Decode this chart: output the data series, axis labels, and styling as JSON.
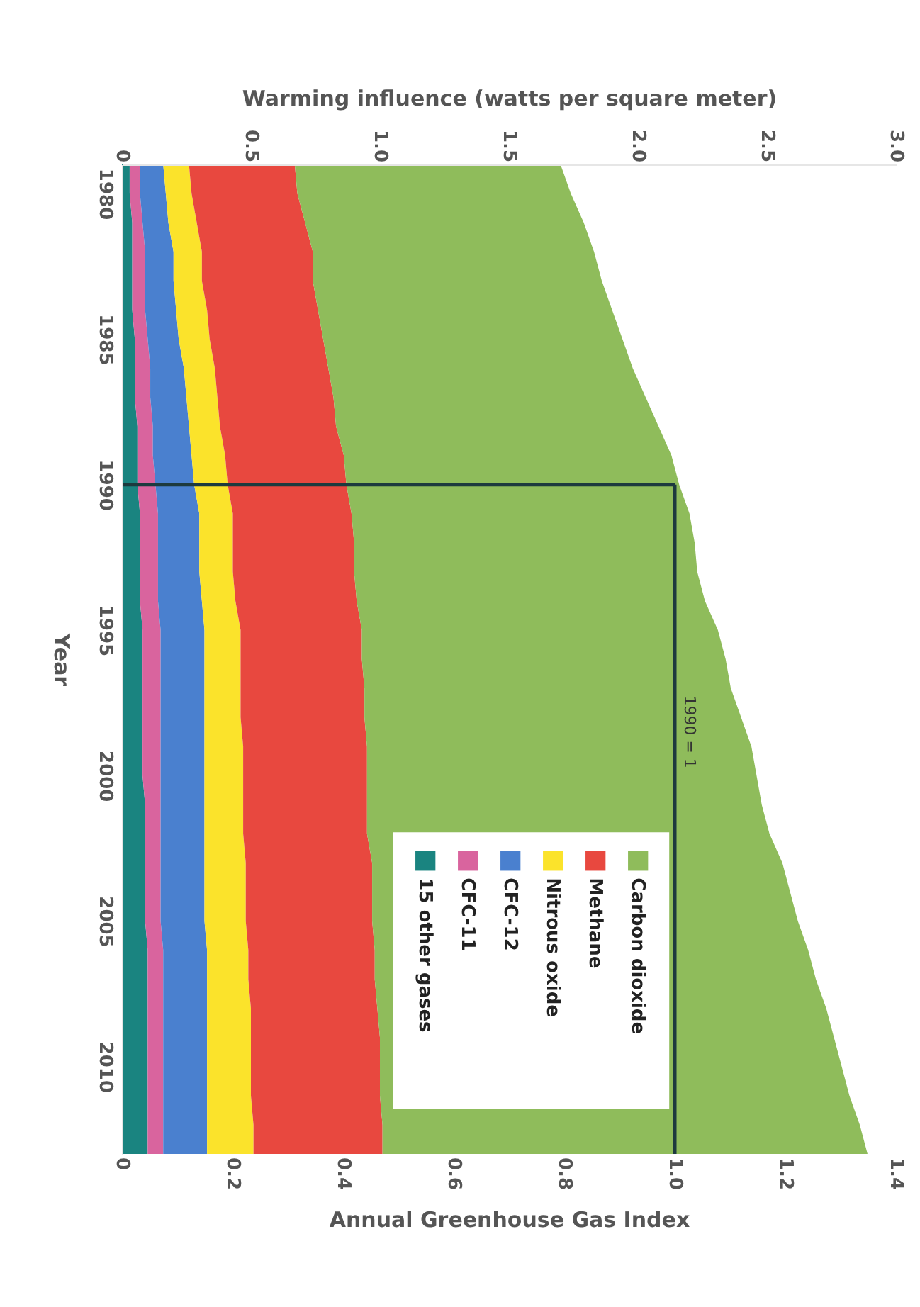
{
  "chart_data": {
    "type": "area",
    "orientation": "horizontal",
    "stacked": true,
    "xlabel": "Warming influence (watts per square meter)",
    "ylabel": "Year",
    "x2label": "Annual Greenhouse Gas Index",
    "x": [
      1979,
      1980,
      1981,
      1982,
      1983,
      1984,
      1985,
      1986,
      1987,
      1988,
      1989,
      1990,
      1991,
      1992,
      1993,
      1994,
      1995,
      1996,
      1997,
      1998,
      1999,
      2000,
      2001,
      2002,
      2003,
      2004,
      2005,
      2006,
      2007,
      2008,
      2009,
      2010,
      2011,
      2012,
      2013
    ],
    "series": [
      {
        "name": "15 other gases",
        "color": "#1a8480",
        "values": [
          0.03,
          0.03,
          0.04,
          0.04,
          0.04,
          0.04,
          0.05,
          0.05,
          0.05,
          0.06,
          0.06,
          0.06,
          0.07,
          0.07,
          0.07,
          0.07,
          0.08,
          0.08,
          0.08,
          0.08,
          0.08,
          0.08,
          0.09,
          0.09,
          0.09,
          0.09,
          0.09,
          0.1,
          0.1,
          0.1,
          0.1,
          0.1,
          0.1,
          0.1,
          0.1
        ]
      },
      {
        "name": "CFC-11",
        "color": "#d9649e",
        "values": [
          0.04,
          0.04,
          0.04,
          0.05,
          0.05,
          0.05,
          0.05,
          0.06,
          0.06,
          0.06,
          0.06,
          0.07,
          0.07,
          0.07,
          0.07,
          0.07,
          0.07,
          0.07,
          0.07,
          0.07,
          0.07,
          0.07,
          0.06,
          0.06,
          0.06,
          0.06,
          0.06,
          0.06,
          0.06,
          0.06,
          0.06,
          0.06,
          0.06,
          0.06,
          0.06
        ]
      },
      {
        "name": "CFC-12",
        "color": "#4a80cf",
        "values": [
          0.09,
          0.1,
          0.1,
          0.11,
          0.11,
          0.12,
          0.12,
          0.13,
          0.14,
          0.14,
          0.15,
          0.15,
          0.16,
          0.16,
          0.16,
          0.17,
          0.17,
          0.17,
          0.17,
          0.17,
          0.17,
          0.17,
          0.17,
          0.17,
          0.17,
          0.17,
          0.17,
          0.17,
          0.17,
          0.17,
          0.17,
          0.17,
          0.17,
          0.17,
          0.17
        ]
      },
      {
        "name": "Nitrous oxide",
        "color": "#fbe32b",
        "values": [
          0.1,
          0.1,
          0.11,
          0.11,
          0.11,
          0.12,
          0.12,
          0.12,
          0.12,
          0.12,
          0.13,
          0.13,
          0.13,
          0.13,
          0.13,
          0.13,
          0.14,
          0.14,
          0.14,
          0.14,
          0.15,
          0.15,
          0.15,
          0.15,
          0.16,
          0.16,
          0.16,
          0.16,
          0.16,
          0.17,
          0.17,
          0.17,
          0.17,
          0.18,
          0.18
        ]
      },
      {
        "name": "Methane",
        "color": "#e8483f",
        "values": [
          0.41,
          0.41,
          0.42,
          0.43,
          0.43,
          0.43,
          0.44,
          0.44,
          0.45,
          0.45,
          0.46,
          0.46,
          0.46,
          0.47,
          0.47,
          0.47,
          0.47,
          0.47,
          0.48,
          0.48,
          0.48,
          0.48,
          0.48,
          0.48,
          0.49,
          0.49,
          0.49,
          0.49,
          0.49,
          0.49,
          0.5,
          0.5,
          0.5,
          0.5,
          0.5
        ]
      },
      {
        "name": "Carbon dioxide",
        "color": "#8fbc5b",
        "values": [
          1.03,
          1.06,
          1.08,
          1.09,
          1.12,
          1.14,
          1.16,
          1.18,
          1.21,
          1.25,
          1.27,
          1.29,
          1.31,
          1.32,
          1.33,
          1.35,
          1.38,
          1.41,
          1.42,
          1.46,
          1.49,
          1.51,
          1.53,
          1.56,
          1.59,
          1.62,
          1.65,
          1.68,
          1.71,
          1.74,
          1.76,
          1.79,
          1.82,
          1.85,
          1.88
        ]
      }
    ],
    "xlim": [
      0,
      3.0
    ],
    "xticks": [
      0,
      {
        "value": 0.5,
        "label": "0.5"
      },
      {
        "value": 1.0,
        "label": "1.0"
      },
      {
        "value": 1.5,
        "label": "1.5"
      },
      {
        "value": 2.0,
        "label": "2.0"
      },
      {
        "value": 2.5,
        "label": "2.5"
      },
      {
        "value": 3.0,
        "label": "3.0"
      }
    ],
    "x2lim": [
      0,
      1.4
    ],
    "x2ticks": [
      0,
      0.2,
      0.4,
      0.6,
      0.8,
      {
        "value": 1.0,
        "label": "1.0"
      },
      1.2,
      1.4
    ],
    "ylim": [
      2013,
      1979
    ],
    "yticks": [
      1980,
      1985,
      1990,
      1995,
      2000,
      2005,
      2010
    ],
    "ref_lines": [
      {
        "axis": "y",
        "value": 1990,
        "color": "#1d3a3e"
      },
      {
        "axis": "x2",
        "value": 1.0,
        "label": "1990 = 1",
        "color": "#1d3a3e"
      }
    ],
    "legend": "bottom",
    "grid": false
  }
}
